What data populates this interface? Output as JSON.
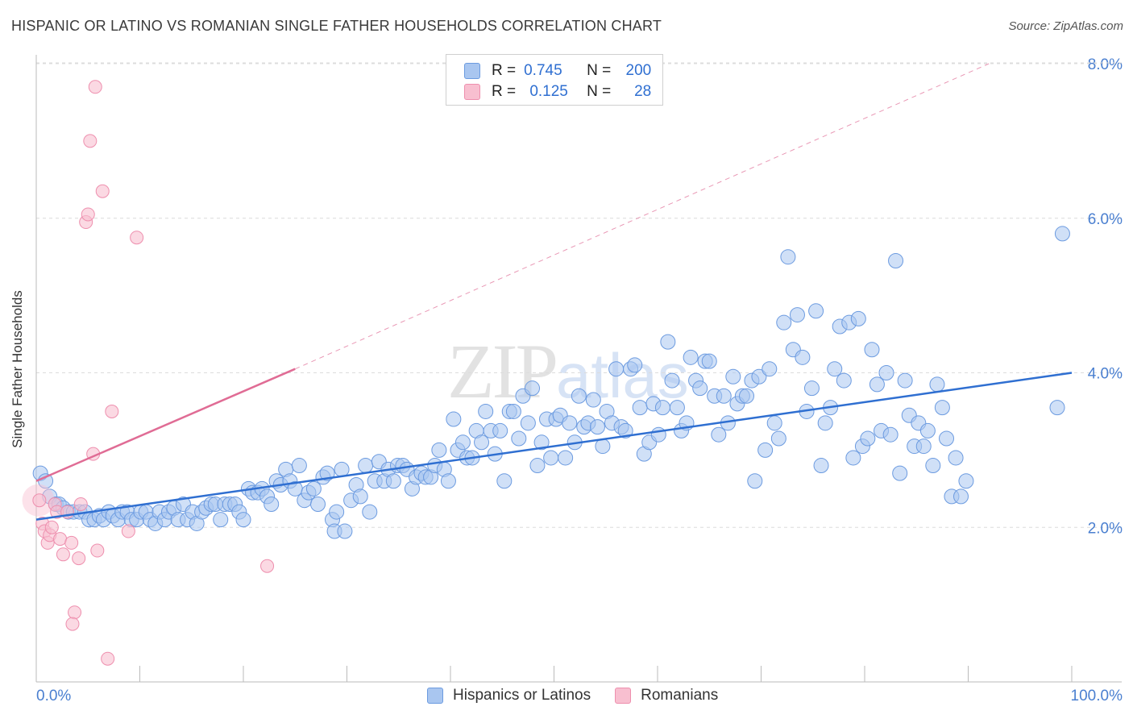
{
  "header": {
    "title": "HISPANIC OR LATINO VS ROMANIAN SINGLE FATHER HOUSEHOLDS CORRELATION CHART",
    "source": "Source: ZipAtlas.com"
  },
  "watermark": {
    "main": "ZIP",
    "sub": "atlas"
  },
  "legend": {
    "rows": [
      {
        "r_label": "R =",
        "r_value": "0.745",
        "n_label": "N =",
        "n_value": "200",
        "color": "#a9c6f0",
        "border": "#6c9be0"
      },
      {
        "r_label": "R =",
        "r_value": "0.125",
        "n_label": "N =",
        "n_value": "28",
        "color": "#f8bfd0",
        "border": "#ee8fae"
      }
    ]
  },
  "bottom_legend": {
    "items": [
      {
        "label": "Hispanics or Latinos",
        "color": "#a9c6f0",
        "border": "#6c9be0"
      },
      {
        "label": "Romanians",
        "color": "#f8bfd0",
        "border": "#ee8fae"
      }
    ]
  },
  "chart_data": {
    "type": "scatter",
    "title": "HISPANIC OR LATINO VS ROMANIAN SINGLE FATHER HOUSEHOLDS CORRELATION CHART",
    "xlabel": "",
    "ylabel": "Single Father Households",
    "xlim": [
      0,
      100
    ],
    "ylim": [
      0,
      8
    ],
    "x_tick_labels": [
      "0.0%",
      "100.0%"
    ],
    "y_ticks": [
      2,
      4,
      6,
      8
    ],
    "y_tick_labels": [
      "2.0%",
      "4.0%",
      "6.0%",
      "8.0%"
    ],
    "grid": "horizontal dashed",
    "legend_position": "top-center",
    "colors": {
      "blue": "#6c9be0",
      "blue_fill": "#a9c6f0",
      "blue_line": "#2f6fd1",
      "pink": "#ee8fae",
      "pink_fill": "#f8bfd0",
      "pink_line": "#e06c95"
    },
    "series": [
      {
        "name": "Hispanics or Latinos",
        "trend": {
          "x": [
            0,
            100
          ],
          "y": [
            2.1,
            4.0
          ]
        },
        "points": [
          [
            0.4,
            2.7
          ],
          [
            0.9,
            2.6
          ],
          [
            1.3,
            2.4
          ],
          [
            1.9,
            2.3
          ],
          [
            2.2,
            2.3
          ],
          [
            2.6,
            2.25
          ],
          [
            3.1,
            2.2
          ],
          [
            3.6,
            2.2
          ],
          [
            4.2,
            2.2
          ],
          [
            4.7,
            2.2
          ],
          [
            5.1,
            2.1
          ],
          [
            5.6,
            2.1
          ],
          [
            6.1,
            2.15
          ],
          [
            6.5,
            2.1
          ],
          [
            7.0,
            2.2
          ],
          [
            7.4,
            2.15
          ],
          [
            7.9,
            2.1
          ],
          [
            8.3,
            2.2
          ],
          [
            8.8,
            2.2
          ],
          [
            9.2,
            2.1
          ],
          [
            9.7,
            2.1
          ],
          [
            10.1,
            2.2
          ],
          [
            10.6,
            2.2
          ],
          [
            11.0,
            2.1
          ],
          [
            11.5,
            2.05
          ],
          [
            11.9,
            2.2
          ],
          [
            12.4,
            2.1
          ],
          [
            12.8,
            2.2
          ],
          [
            13.3,
            2.25
          ],
          [
            13.7,
            2.1
          ],
          [
            14.2,
            2.3
          ],
          [
            14.6,
            2.1
          ],
          [
            15.1,
            2.2
          ],
          [
            15.5,
            2.05
          ],
          [
            16.0,
            2.2
          ],
          [
            16.4,
            2.25
          ],
          [
            16.9,
            2.3
          ],
          [
            17.3,
            2.3
          ],
          [
            17.8,
            2.1
          ],
          [
            18.2,
            2.3
          ],
          [
            18.7,
            2.3
          ],
          [
            19.2,
            2.3
          ],
          [
            19.6,
            2.2
          ],
          [
            20.0,
            2.1
          ],
          [
            20.5,
            2.5
          ],
          [
            20.9,
            2.45
          ],
          [
            21.4,
            2.45
          ],
          [
            21.8,
            2.5
          ],
          [
            22.3,
            2.4
          ],
          [
            22.7,
            2.3
          ],
          [
            23.2,
            2.6
          ],
          [
            23.6,
            2.55
          ],
          [
            24.1,
            2.75
          ],
          [
            24.5,
            2.6
          ],
          [
            25.0,
            2.5
          ],
          [
            25.4,
            2.8
          ],
          [
            25.9,
            2.35
          ],
          [
            26.3,
            2.45
          ],
          [
            26.8,
            2.5
          ],
          [
            27.2,
            2.3
          ],
          [
            27.7,
            2.65
          ],
          [
            28.1,
            2.7
          ],
          [
            28.6,
            2.1
          ],
          [
            28.8,
            1.95
          ],
          [
            29.0,
            2.2
          ],
          [
            29.5,
            2.75
          ],
          [
            29.8,
            1.95
          ],
          [
            30.4,
            2.35
          ],
          [
            30.9,
            2.55
          ],
          [
            31.3,
            2.4
          ],
          [
            31.8,
            2.8
          ],
          [
            32.2,
            2.2
          ],
          [
            32.7,
            2.6
          ],
          [
            33.1,
            2.85
          ],
          [
            33.6,
            2.6
          ],
          [
            34.0,
            2.75
          ],
          [
            34.5,
            2.6
          ],
          [
            34.9,
            2.8
          ],
          [
            35.4,
            2.8
          ],
          [
            35.8,
            2.75
          ],
          [
            36.3,
            2.5
          ],
          [
            36.7,
            2.65
          ],
          [
            37.2,
            2.7
          ],
          [
            37.6,
            2.65
          ],
          [
            38.1,
            2.65
          ],
          [
            38.5,
            2.8
          ],
          [
            38.9,
            3.0
          ],
          [
            39.4,
            2.75
          ],
          [
            39.8,
            2.6
          ],
          [
            40.3,
            3.4
          ],
          [
            40.7,
            3.0
          ],
          [
            41.2,
            3.1
          ],
          [
            41.6,
            2.9
          ],
          [
            42.1,
            2.9
          ],
          [
            42.5,
            3.25
          ],
          [
            43.0,
            3.1
          ],
          [
            43.4,
            3.5
          ],
          [
            43.9,
            3.25
          ],
          [
            44.3,
            2.95
          ],
          [
            44.8,
            3.25
          ],
          [
            45.2,
            2.6
          ],
          [
            45.7,
            3.5
          ],
          [
            46.1,
            3.5
          ],
          [
            46.6,
            3.15
          ],
          [
            47.0,
            3.7
          ],
          [
            47.5,
            3.35
          ],
          [
            47.9,
            3.8
          ],
          [
            48.4,
            2.8
          ],
          [
            48.8,
            3.1
          ],
          [
            49.3,
            3.4
          ],
          [
            49.7,
            2.9
          ],
          [
            50.2,
            3.4
          ],
          [
            50.6,
            3.45
          ],
          [
            51.1,
            2.9
          ],
          [
            51.5,
            3.35
          ],
          [
            52.0,
            3.1
          ],
          [
            52.4,
            3.7
          ],
          [
            52.9,
            3.3
          ],
          [
            53.3,
            3.35
          ],
          [
            53.8,
            3.65
          ],
          [
            54.2,
            3.3
          ],
          [
            54.7,
            3.05
          ],
          [
            55.1,
            3.5
          ],
          [
            55.6,
            3.35
          ],
          [
            56.0,
            4.05
          ],
          [
            56.5,
            3.3
          ],
          [
            56.9,
            3.25
          ],
          [
            57.4,
            4.05
          ],
          [
            57.8,
            4.1
          ],
          [
            58.3,
            3.55
          ],
          [
            58.7,
            2.95
          ],
          [
            59.2,
            3.1
          ],
          [
            59.6,
            3.6
          ],
          [
            60.1,
            3.2
          ],
          [
            60.5,
            3.55
          ],
          [
            61.0,
            4.4
          ],
          [
            61.4,
            3.9
          ],
          [
            61.9,
            3.55
          ],
          [
            62.3,
            3.25
          ],
          [
            62.8,
            3.35
          ],
          [
            63.2,
            4.2
          ],
          [
            63.7,
            3.9
          ],
          [
            64.1,
            3.8
          ],
          [
            64.6,
            4.15
          ],
          [
            65.0,
            4.15
          ],
          [
            65.5,
            3.7
          ],
          [
            65.9,
            3.2
          ],
          [
            66.4,
            3.7
          ],
          [
            66.8,
            3.35
          ],
          [
            67.3,
            3.95
          ],
          [
            67.7,
            3.6
          ],
          [
            68.2,
            3.7
          ],
          [
            68.6,
            3.7
          ],
          [
            69.1,
            3.9
          ],
          [
            69.4,
            2.6
          ],
          [
            69.8,
            3.95
          ],
          [
            70.4,
            3.0
          ],
          [
            70.8,
            4.05
          ],
          [
            71.3,
            3.35
          ],
          [
            71.7,
            3.15
          ],
          [
            72.2,
            4.65
          ],
          [
            72.6,
            5.5
          ],
          [
            73.1,
            4.3
          ],
          [
            73.5,
            4.75
          ],
          [
            74.0,
            4.2
          ],
          [
            74.4,
            3.5
          ],
          [
            74.9,
            3.8
          ],
          [
            75.3,
            4.8
          ],
          [
            75.8,
            2.8
          ],
          [
            76.2,
            3.35
          ],
          [
            76.7,
            3.55
          ],
          [
            77.1,
            4.05
          ],
          [
            77.6,
            4.6
          ],
          [
            78.0,
            3.9
          ],
          [
            78.5,
            4.65
          ],
          [
            78.9,
            2.9
          ],
          [
            79.4,
            4.7
          ],
          [
            79.8,
            3.05
          ],
          [
            80.3,
            3.15
          ],
          [
            80.7,
            4.3
          ],
          [
            81.2,
            3.85
          ],
          [
            81.6,
            3.25
          ],
          [
            82.1,
            4.0
          ],
          [
            82.5,
            3.2
          ],
          [
            83.0,
            5.45
          ],
          [
            83.4,
            2.7
          ],
          [
            83.9,
            3.9
          ],
          [
            84.3,
            3.45
          ],
          [
            84.8,
            3.05
          ],
          [
            85.2,
            3.35
          ],
          [
            85.7,
            3.05
          ],
          [
            86.1,
            3.25
          ],
          [
            86.6,
            2.8
          ],
          [
            87.0,
            3.85
          ],
          [
            87.5,
            3.55
          ],
          [
            87.9,
            3.15
          ],
          [
            88.4,
            2.4
          ],
          [
            88.8,
            2.9
          ],
          [
            89.3,
            2.4
          ],
          [
            89.8,
            2.6
          ],
          [
            99.1,
            5.8
          ],
          [
            98.6,
            3.55
          ]
        ]
      },
      {
        "name": "Romanians",
        "trend": {
          "x": [
            0,
            25
          ],
          "y": [
            2.6,
            4.05
          ]
        },
        "trend_extended": {
          "x": [
            25,
            92
          ],
          "y": [
            4.05,
            8.0
          ]
        },
        "points": [
          [
            0.3,
            2.35
          ],
          [
            0.6,
            2.05
          ],
          [
            0.8,
            1.95
          ],
          [
            1.1,
            1.8
          ],
          [
            1.3,
            1.9
          ],
          [
            1.5,
            2.0
          ],
          [
            1.8,
            2.3
          ],
          [
            2.0,
            2.2
          ],
          [
            2.3,
            1.85
          ],
          [
            2.6,
            1.65
          ],
          [
            3.0,
            2.2
          ],
          [
            3.4,
            1.8
          ],
          [
            3.7,
            0.9
          ],
          [
            3.5,
            0.75
          ],
          [
            4.1,
            1.6
          ],
          [
            4.3,
            2.3
          ],
          [
            4.8,
            5.95
          ],
          [
            5.0,
            6.05
          ],
          [
            5.2,
            7.0
          ],
          [
            5.5,
            2.95
          ],
          [
            5.7,
            7.7
          ],
          [
            5.9,
            1.7
          ],
          [
            6.4,
            6.35
          ],
          [
            6.9,
            0.3
          ],
          [
            7.3,
            3.5
          ],
          [
            8.9,
            1.95
          ],
          [
            9.7,
            5.75
          ],
          [
            22.3,
            1.5
          ]
        ]
      }
    ]
  }
}
